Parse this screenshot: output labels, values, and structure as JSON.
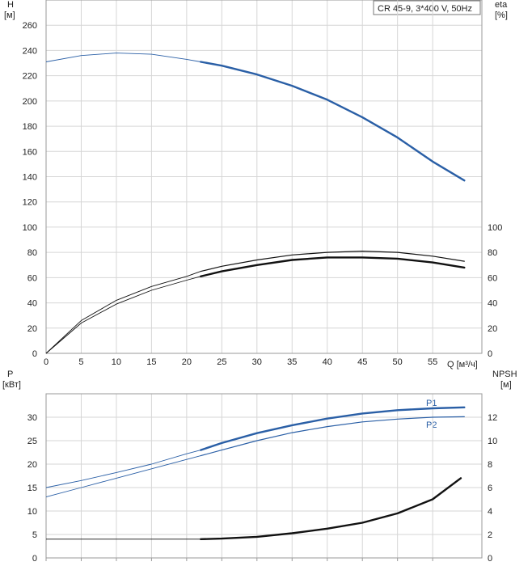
{
  "top_chart": {
    "left_axis": {
      "title": "H",
      "unit": "[м]"
    },
    "right_axis": {
      "title": "eta",
      "unit": "[%]"
    },
    "x_axis": {
      "unit": "Q [м³/ч]"
    },
    "legend_box": "CR 45-9, 3*400 V, 50Hz"
  },
  "bottom_chart": {
    "left_axis": {
      "title": "P",
      "unit": "[кВт]"
    },
    "right_axis": {
      "title": "NPSH",
      "unit": "[м]"
    },
    "series_labels": {
      "p1": "P1",
      "p2": "P2"
    }
  },
  "colors": {
    "blue": "#2a5fa6",
    "black": "#111111",
    "grid": "#d6d6d6",
    "frame": "#9a9a9a"
  },
  "chart_data": [
    {
      "type": "line",
      "x_ticks": [
        "0",
        "5",
        "10",
        "15",
        "20",
        "25",
        "30",
        "35",
        "40",
        "45",
        "50",
        "55"
      ],
      "y_ticks": [
        "0",
        "20",
        "40",
        "60",
        "80",
        "100",
        "120",
        "140",
        "160",
        "180",
        "200",
        "220",
        "240",
        "260"
      ],
      "y2_ticks": [
        "0",
        "20",
        "40",
        "60",
        "80",
        "100"
      ],
      "xlim": [
        0,
        62
      ],
      "ylim": [
        0,
        280
      ],
      "y2lim": [
        0,
        280
      ],
      "grid": true,
      "series": [
        {
          "axis": "left",
          "color": "#2a5fa6",
          "x": [
            0,
            5,
            10,
            15,
            20,
            22,
            25,
            30,
            35,
            40,
            45,
            50,
            55,
            59.5
          ],
          "y": [
            231,
            236,
            238,
            237,
            233,
            231,
            228,
            221,
            212,
            201,
            187,
            171,
            152,
            137
          ],
          "thin_until": 22
        },
        {
          "axis": "right",
          "color": "#111111",
          "x": [
            0,
            5,
            10,
            15,
            20,
            22,
            25,
            30,
            35,
            40,
            45,
            50,
            55,
            59.5
          ],
          "y": [
            0,
            24,
            39,
            50,
            58,
            61,
            65,
            70,
            74,
            76,
            76,
            75,
            72,
            68
          ],
          "thin_until": 22
        },
        {
          "axis": "right",
          "color": "#111111",
          "x": [
            0,
            5,
            10,
            15,
            20,
            22,
            25,
            30,
            35,
            40,
            45,
            50,
            55,
            59.5
          ],
          "y": [
            0,
            26,
            42,
            53,
            61,
            65,
            69,
            74,
            78,
            80,
            81,
            80,
            77,
            73
          ],
          "thin_until": 22,
          "width": 1.2
        }
      ]
    },
    {
      "type": "line",
      "x_ticks": [
        "0",
        "5",
        "10",
        "15",
        "20",
        "25",
        "30",
        "35",
        "40",
        "45",
        "50",
        "55"
      ],
      "y_ticks": [
        "0",
        "5",
        "10",
        "15",
        "20",
        "25",
        "30"
      ],
      "y2_ticks": [
        "0",
        "2",
        "4",
        "6",
        "8",
        "10",
        "12"
      ],
      "xlim": [
        0,
        62
      ],
      "ylim": [
        0,
        35
      ],
      "y2lim": [
        0,
        14
      ],
      "grid": true,
      "series": [
        {
          "name": "P1",
          "axis": "left",
          "color": "#2a5fa6",
          "x": [
            0,
            5,
            10,
            15,
            20,
            22,
            25,
            30,
            35,
            40,
            45,
            50,
            55,
            59.5
          ],
          "y": [
            15.0,
            16.5,
            18.2,
            20.0,
            22.2,
            23.0,
            24.5,
            26.6,
            28.3,
            29.7,
            30.8,
            31.5,
            31.9,
            32.1
          ],
          "thin_until": 22
        },
        {
          "name": "P2",
          "axis": "left",
          "color": "#2a5fa6",
          "x": [
            0,
            5,
            10,
            15,
            20,
            22,
            25,
            30,
            35,
            40,
            45,
            50,
            55,
            59.5
          ],
          "y": [
            13.0,
            15.0,
            17.0,
            19.0,
            21.0,
            21.8,
            23.0,
            25.0,
            26.7,
            28.0,
            29.0,
            29.6,
            30.0,
            30.1
          ],
          "thin_until": 22,
          "width": 1.2
        },
        {
          "axis": "right",
          "color": "#111111",
          "x": [
            0,
            10,
            20,
            22,
            25,
            30,
            35,
            40,
            45,
            50,
            55,
            59
          ],
          "y": [
            1.6,
            1.6,
            1.6,
            1.6,
            1.65,
            1.8,
            2.1,
            2.5,
            3.0,
            3.8,
            5.0,
            6.8
          ],
          "thin_until": 22
        }
      ]
    }
  ]
}
